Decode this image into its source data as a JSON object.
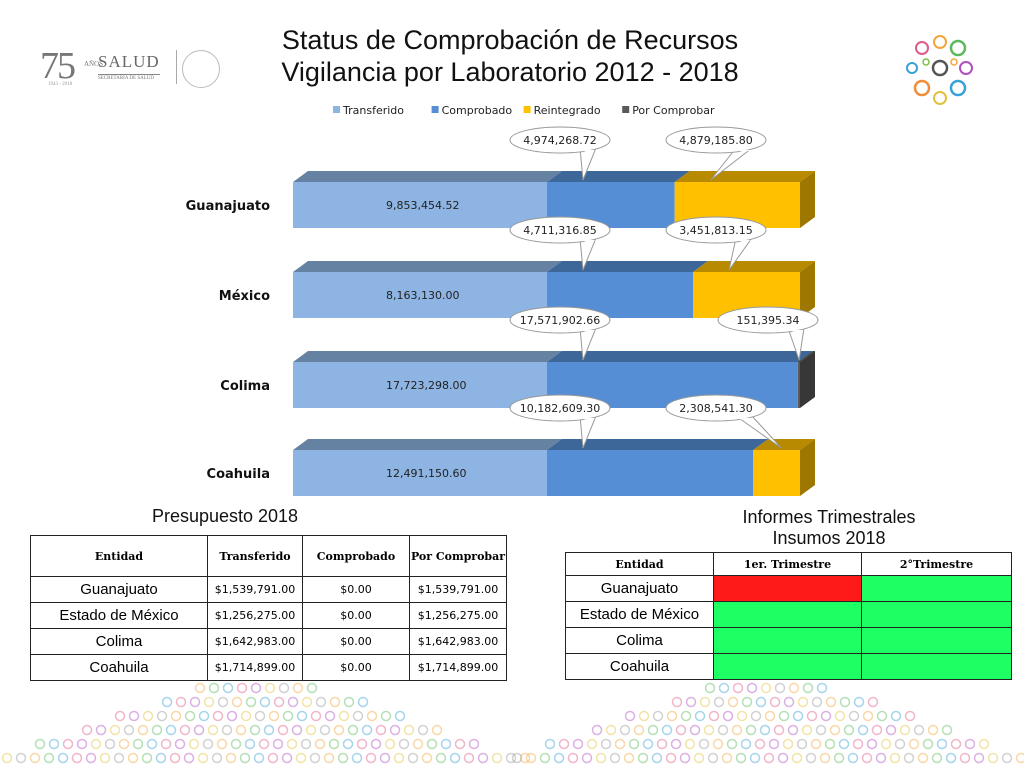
{
  "header": {
    "title_line1": "Status de Comprobación de Recursos",
    "title_line2": "Vigilancia por Laboratorio 2012 - 2018",
    "logo_75": "75",
    "logo_anos": "AÑOS",
    "logo_years": "1943 - 2018",
    "logo_salud": "SALUD",
    "logo_secretaria": "SECRETARÍA DE SALUD"
  },
  "chart_data": {
    "type": "bar",
    "orientation": "horizontal",
    "stacked": true,
    "legend_position": "top",
    "categories": [
      "Guanajuato",
      "México",
      "Colima",
      "Coahuila"
    ],
    "series": [
      {
        "name": "Transferido",
        "color": "#8db4e2",
        "values": [
          9853454.52,
          8163130.0,
          17723298.0,
          12491150.6
        ],
        "labels": [
          "9,853,454.52",
          "8,163,130.00",
          "17,723,298.00",
          "12,491,150.60"
        ]
      },
      {
        "name": "Comprobado",
        "color": "#558ed5",
        "values": [
          4974268.72,
          4711316.85,
          17571902.66,
          10182609.3
        ],
        "labels": [
          "4,974,268.72",
          "4,711,316.85",
          "17,571,902.66",
          "10,182,609.30"
        ]
      },
      {
        "name": "Reintegrado",
        "color": "#ffc000",
        "values": [
          4879185.8,
          3451813.15,
          0,
          2308541.3
        ],
        "labels": [
          "4,879,185.80",
          "3,451,813.15",
          "",
          "2,308,541.30"
        ]
      },
      {
        "name": "Por Comprobar",
        "color": "#595959",
        "values": [
          0,
          0,
          151395.34,
          0
        ],
        "labels": [
          "",
          "",
          "151,395.34",
          ""
        ]
      }
    ]
  },
  "presupuesto": {
    "title": "Presupuesto 2018",
    "headers": [
      "Entidad",
      "Transferido",
      "Comprobado",
      "Por Comprobar"
    ],
    "rows": [
      [
        "Guanajuato",
        "$1,539,791.00",
        "$0.00",
        "$1,539,791.00"
      ],
      [
        "Estado de México",
        "$1,256,275.00",
        "$0.00",
        "$1,256,275.00"
      ],
      [
        "Colima",
        "$1,642,983.00",
        "$0.00",
        "$1,642,983.00"
      ],
      [
        "Coahuila",
        "$1,714,899.00",
        "$0.00",
        "$1,714,899.00"
      ]
    ]
  },
  "informes": {
    "title_line1": "Informes Trimestrales",
    "title_line2": "Insumos 2018",
    "headers": [
      "Entidad",
      "1er. Trimestre",
      "2°Trimestre"
    ],
    "rows": [
      {
        "entidad": "Guanajuato",
        "status": [
          "red",
          "green"
        ]
      },
      {
        "entidad": "Estado de México",
        "status": [
          "green",
          "green"
        ]
      },
      {
        "entidad": "Colima",
        "status": [
          "green",
          "green"
        ]
      },
      {
        "entidad": "Coahuila",
        "status": [
          "green",
          "green"
        ]
      }
    ]
  },
  "colors": {
    "red": "#ff1a1a",
    "green": "#1eff63"
  }
}
